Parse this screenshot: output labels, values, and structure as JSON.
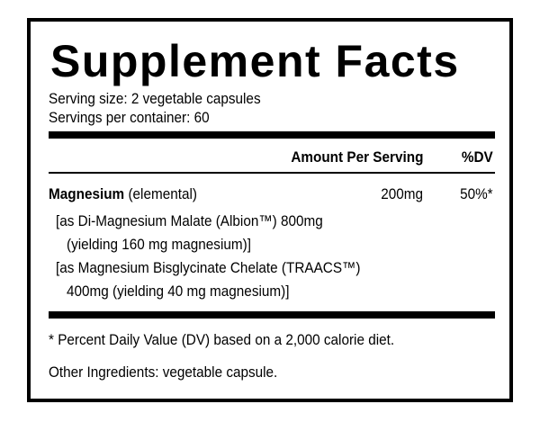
{
  "header": {
    "title": "Supplement Facts",
    "serving_size": "Serving size: 2 vegetable capsules",
    "servings_per_container": "Servings per container: 60"
  },
  "columns": {
    "amount": "Amount Per Serving",
    "dv": "%DV"
  },
  "rows": [
    {
      "name": "Magnesium",
      "qualifier": "(elemental)",
      "amount": "200mg",
      "dv": "50%*",
      "details": [
        [
          "[as Di-Magnesium Malate (Albion™) 800mg",
          "(yielding 160 mg magnesium)]"
        ],
        [
          "[as Magnesium Bisglycinate Chelate (TRAACS™)",
          "400mg (yielding 40 mg magnesium)]"
        ]
      ]
    }
  ],
  "footnote": "* Percent Daily Value (DV) based on a 2,000 calorie diet.",
  "other_ingredients": "Other Ingredients: vegetable capsule."
}
